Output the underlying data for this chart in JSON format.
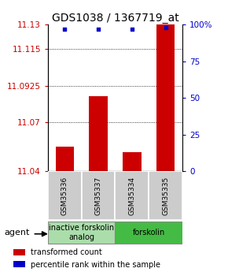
{
  "title": "GDS1038 / 1367719_at",
  "samples": [
    "GSM35336",
    "GSM35337",
    "GSM35334",
    "GSM35335"
  ],
  "bar_values": [
    11.055,
    11.086,
    11.052,
    11.13
  ],
  "bar_base": 11.04,
  "percentile_values": [
    97,
    97,
    97,
    98
  ],
  "ylim_left": [
    11.04,
    11.13
  ],
  "ylim_right": [
    0,
    100
  ],
  "yticks_left": [
    11.04,
    11.07,
    11.0925,
    11.115,
    11.13
  ],
  "ytick_labels_left": [
    "11.04",
    "11.07",
    "11.0925",
    "11.115",
    "11.13"
  ],
  "yticks_right": [
    0,
    25,
    50,
    75,
    100
  ],
  "ytick_labels_right": [
    "0",
    "25",
    "50",
    "75",
    "100%"
  ],
  "groups": [
    {
      "label": "inactive forskolin\nanalog",
      "samples": [
        0,
        1
      ],
      "color": "#aaddaa"
    },
    {
      "label": "forskolin",
      "samples": [
        2,
        3
      ],
      "color": "#44bb44"
    }
  ],
  "bar_color": "#cc0000",
  "dot_color": "#0000cc",
  "agent_label": "agent",
  "legend_items": [
    {
      "color": "#cc0000",
      "label": "transformed count"
    },
    {
      "color": "#0000cc",
      "label": "percentile rank within the sample"
    }
  ],
  "grid_color": "#555555",
  "title_fontsize": 10,
  "tick_fontsize": 7.5,
  "sample_label_fontsize": 6.5,
  "group_label_fontsize": 7
}
